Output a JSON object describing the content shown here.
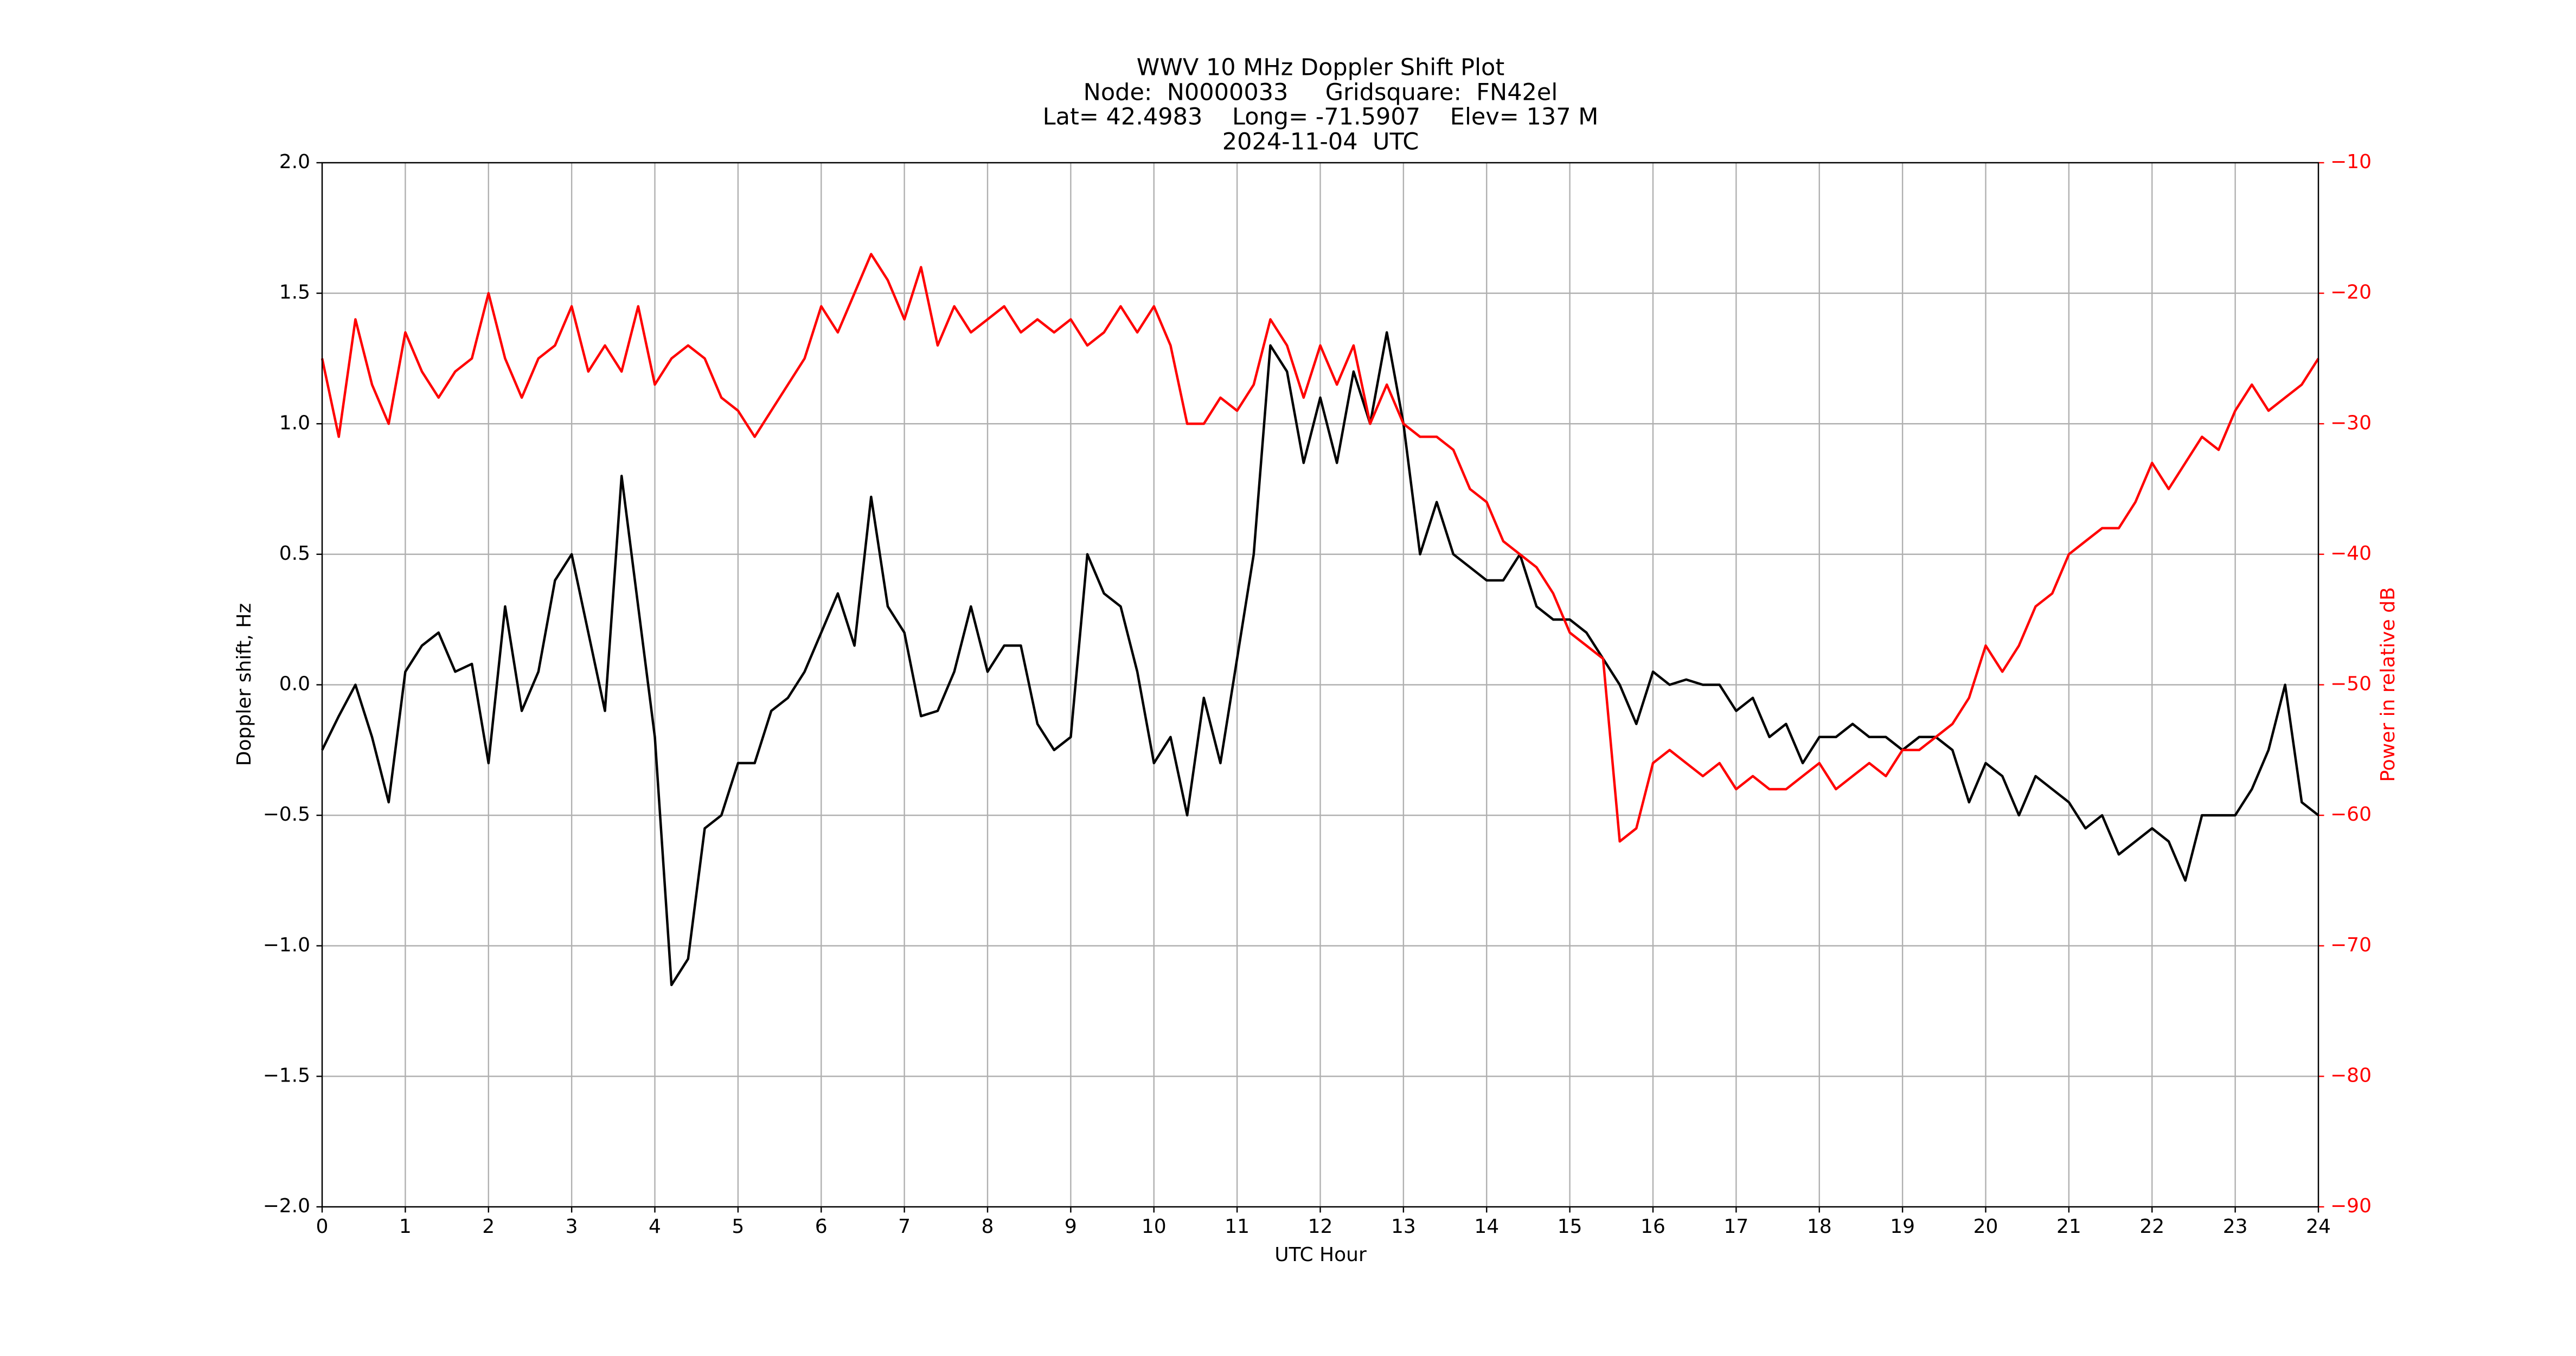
{
  "chart_data": {
    "type": "line",
    "title": "WWV 10 MHz Doppler Shift Plot",
    "subtitle": [
      "Node:  N0000033     Gridsquare:  FN42el",
      "Lat= 42.4983    Long= -71.5907    Elev= 137 M",
      "2024-11-04  UTC"
    ],
    "xlabel": "UTC Hour",
    "ylabel": "Doppler shift, Hz",
    "y2label": "Power in relative dB",
    "xlim": [
      0,
      24
    ],
    "xticks": [
      0,
      1,
      2,
      3,
      4,
      5,
      6,
      7,
      8,
      9,
      10,
      11,
      12,
      13,
      14,
      15,
      16,
      17,
      18,
      19,
      20,
      21,
      22,
      23,
      24
    ],
    "ylim": [
      -2,
      2
    ],
    "yticks": [
      {
        "value": -2,
        "label": "−2.0"
      },
      {
        "value": -1.5,
        "label": "−1.5"
      },
      {
        "value": -1,
        "label": "−1.0"
      },
      {
        "value": -0.5,
        "label": "−0.5"
      },
      {
        "value": 0,
        "label": "0.0"
      },
      0.5,
      {
        "value": 1,
        "label": "1.0"
      },
      1.5,
      {
        "value": 2,
        "label": "2.0"
      }
    ],
    "y2lim": [
      -90,
      -10
    ],
    "y2ticks": [
      {
        "value": -90,
        "label": "−90"
      },
      {
        "value": -80,
        "label": "−80"
      },
      {
        "value": -70,
        "label": "−70"
      },
      {
        "value": -60,
        "label": "−60"
      },
      {
        "value": -50,
        "label": "−50"
      },
      {
        "value": -40,
        "label": "−40"
      },
      {
        "value": -30,
        "label": "−30"
      },
      {
        "value": -20,
        "label": "−20"
      },
      {
        "value": -10,
        "label": "−10"
      }
    ],
    "grid": true,
    "x": [
      0,
      0.2,
      0.4,
      0.6,
      0.8,
      1,
      1.2,
      1.4,
      1.6,
      1.8,
      2,
      2.2,
      2.4,
      2.6,
      2.8,
      3,
      3.2,
      3.4,
      3.6,
      3.8,
      4,
      4.2,
      4.4,
      4.6,
      4.8,
      5,
      5.2,
      5.4,
      5.6,
      5.8,
      6,
      6.2,
      6.4,
      6.6,
      6.8,
      7,
      7.2,
      7.4,
      7.6,
      7.8,
      8,
      8.2,
      8.4,
      8.6,
      8.8,
      9,
      9.2,
      9.4,
      9.6,
      9.8,
      10,
      10.2,
      10.4,
      10.6,
      10.8,
      11,
      11.2,
      11.4,
      11.6,
      11.8,
      12,
      12.2,
      12.4,
      12.6,
      12.8,
      13,
      13.2,
      13.4,
      13.6,
      13.8,
      14,
      14.2,
      14.4,
      14.6,
      14.8,
      15,
      15.2,
      15.4,
      15.6,
      15.8,
      16,
      16.2,
      16.4,
      16.6,
      16.8,
      17,
      17.2,
      17.4,
      17.6,
      17.8,
      18,
      18.2,
      18.4,
      18.6,
      18.8,
      19,
      19.2,
      19.4,
      19.6,
      19.8,
      20,
      20.2,
      20.4,
      20.6,
      20.8,
      21,
      21.2,
      21.4,
      21.6,
      21.8,
      22,
      22.2,
      22.4,
      22.6,
      22.8,
      23,
      23.2,
      23.4,
      23.6,
      23.8,
      24
    ],
    "series": [
      {
        "color": "#000000",
        "values": [
          -0.25,
          -0.12,
          0,
          -0.2,
          -0.45,
          0.05,
          0.15,
          0.2,
          0.05,
          0.08,
          -0.3,
          0.3,
          -0.1,
          0.05,
          0.4,
          0.5,
          0.2,
          -0.1,
          0.8,
          0.3,
          -0.2,
          -1.15,
          -1.05,
          -0.55,
          -0.5,
          -0.3,
          -0.3,
          -0.1,
          -0.05,
          0.05,
          0.2,
          0.35,
          0.15,
          0.72,
          0.3,
          0.2,
          -0.12,
          -0.1,
          0.05,
          0.3,
          0.05,
          0.15,
          0.15,
          -0.15,
          -0.25,
          -0.2,
          0.5,
          0.35,
          0.3,
          0.05,
          -0.3,
          -0.2,
          -0.5,
          -0.05,
          -0.3,
          0.1,
          0.5,
          1.3,
          1.2,
          0.85,
          1.1,
          0.85,
          1.2,
          1,
          1.35,
          1,
          0.5,
          0.7,
          0.5,
          0.45,
          0.4,
          0.4,
          0.5,
          0.3,
          0.25,
          0.25,
          0.2,
          0.1,
          0,
          -0.15,
          0.05,
          0,
          0.02,
          0,
          0,
          -0.1,
          -0.05,
          -0.2,
          -0.15,
          -0.3,
          -0.2,
          -0.2,
          -0.15,
          -0.2,
          -0.2,
          -0.25,
          -0.2,
          -0.2,
          -0.25,
          -0.45,
          -0.3,
          -0.35,
          -0.5,
          -0.35,
          -0.4,
          -0.45,
          -0.55,
          -0.5,
          -0.65,
          -0.6,
          -0.55,
          -0.6,
          -0.75,
          -0.5,
          -0.5,
          -0.5,
          -0.4,
          -0.25,
          0,
          -0.45,
          -0.5
        ]
      },
      {
        "color": "#ff0000",
        "axis": "y2",
        "values": [
          -25,
          -31,
          -22,
          -27,
          -30,
          -23,
          -26,
          -28,
          -26,
          -25,
          -20,
          -25,
          -28,
          -25,
          -24,
          -21,
          -26,
          -24,
          -26,
          -21,
          -27,
          -25,
          -24,
          -25,
          -28,
          -29,
          -31,
          -29,
          -27,
          -25,
          -21,
          -23,
          -20,
          -17,
          -19,
          -22,
          -18,
          -24,
          -21,
          -23,
          -22,
          -21,
          -23,
          -22,
          -23,
          -22,
          -24,
          -23,
          -21,
          -23,
          -21,
          -24,
          -30,
          -30,
          -28,
          -29,
          -27,
          -22,
          -24,
          -28,
          -24,
          -27,
          -24,
          -30,
          -27,
          -30,
          -31,
          -31,
          -32,
          -35,
          -36,
          -39,
          -40,
          -41,
          -43,
          -46,
          -47,
          -48,
          -62,
          -61,
          -56,
          -55,
          -56,
          -57,
          -56,
          -58,
          -57,
          -58,
          -58,
          -57,
          -56,
          -58,
          -57,
          -56,
          -57,
          -55,
          -55,
          -54,
          -53,
          -51,
          -47,
          -49,
          -47,
          -44,
          -43,
          -40,
          -39,
          -38,
          -38,
          -36,
          -33,
          -35,
          -33,
          -31,
          -32,
          -29,
          -27,
          -29,
          -28,
          -27,
          -25
        ]
      }
    ]
  }
}
